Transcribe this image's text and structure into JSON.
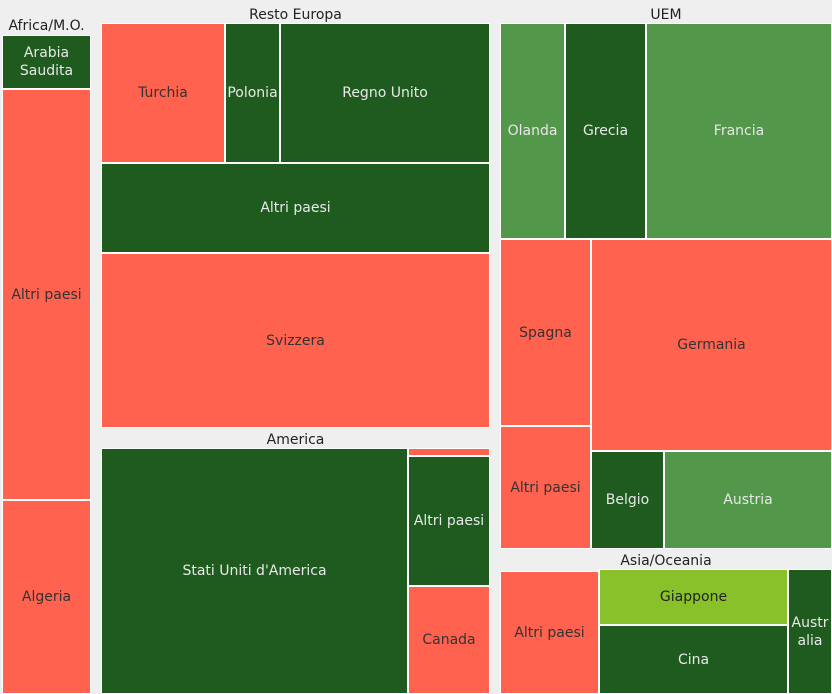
{
  "chart_data": {
    "type": "treemap",
    "colors": {
      "red": "#ff634f",
      "dark_green": "#1f5b1f",
      "medium_green": "#52974a",
      "light_green": "#89c12a"
    },
    "groups": [
      {
        "name": "Africa/M.O.",
        "items": [
          {
            "label": "Arabia Saudita",
            "color": "dark_green"
          },
          {
            "label": "Altri paesi",
            "color": "red"
          },
          {
            "label": "Algeria",
            "color": "red"
          }
        ]
      },
      {
        "name": "Resto Europa",
        "items": [
          {
            "label": "Turchia",
            "color": "red"
          },
          {
            "label": "Polonia",
            "color": "dark_green"
          },
          {
            "label": "Regno Unito",
            "color": "dark_green"
          },
          {
            "label": "Altri paesi",
            "color": "dark_green"
          },
          {
            "label": "Svizzera",
            "color": "red"
          }
        ]
      },
      {
        "name": "UEM",
        "items": [
          {
            "label": "Olanda",
            "color": "medium_green"
          },
          {
            "label": "Grecia",
            "color": "dark_green"
          },
          {
            "label": "Francia",
            "color": "medium_green"
          },
          {
            "label": "Spagna",
            "color": "red"
          },
          {
            "label": "Germania",
            "color": "red"
          },
          {
            "label": "Altri paesi",
            "color": "red"
          },
          {
            "label": "Belgio",
            "color": "dark_green"
          },
          {
            "label": "Austria",
            "color": "medium_green"
          }
        ]
      },
      {
        "name": "America",
        "items": [
          {
            "label": "Stati Uniti d'America",
            "color": "dark_green"
          },
          {
            "label": "",
            "color": "red"
          },
          {
            "label": "Altri paesi",
            "color": "dark_green"
          },
          {
            "label": "Canada",
            "color": "red"
          }
        ]
      },
      {
        "name": "Asia/Oceania",
        "items": [
          {
            "label": "Altri paesi",
            "color": "red"
          },
          {
            "label": "Giappone",
            "color": "light_green"
          },
          {
            "label": "Cina",
            "color": "dark_green"
          },
          {
            "label": "Australia",
            "color": "dark_green"
          }
        ]
      }
    ]
  }
}
